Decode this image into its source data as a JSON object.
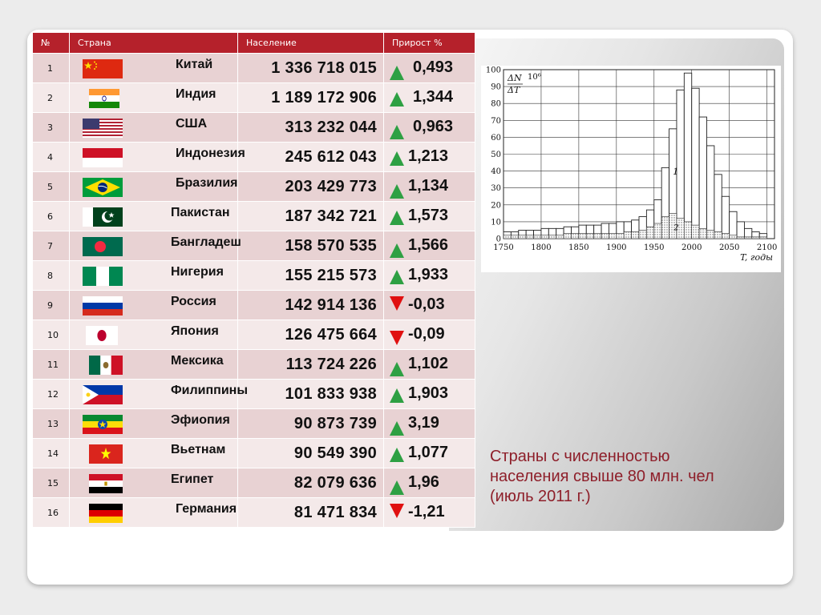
{
  "table": {
    "headers": {
      "num": "№",
      "country": "Страна",
      "population": "Население",
      "growth": "Прирост  %"
    },
    "rows": [
      {
        "num": "1",
        "country": "Китай",
        "flag": "china-flag-icon",
        "population": "1 336 718 015",
        "growth": "0,493",
        "trend": "up"
      },
      {
        "num": "2",
        "country": "Индия",
        "flag": "india-flag-icon",
        "population": "1 189 172 906",
        "growth": "1,344",
        "trend": "up"
      },
      {
        "num": "3",
        "country": "США",
        "flag": "usa-flag-icon",
        "population": "313 232 044",
        "growth": "0,963",
        "trend": "up"
      },
      {
        "num": "4",
        "country": "Индонезия",
        "flag": "indonesia-flag-icon",
        "population": "245 612 043",
        "growth": "1,213",
        "trend": "up"
      },
      {
        "num": "5",
        "country": "Бразилия",
        "flag": "brazil-flag-icon",
        "population": "203 429 773",
        "growth": "1,134",
        "trend": "up"
      },
      {
        "num": "6",
        "country": "Пакистан",
        "flag": "pakistan-flag-icon",
        "population": "187 342 721",
        "growth": "1,573",
        "trend": "up"
      },
      {
        "num": "7",
        "country": "Бангладеш",
        "flag": "bangladesh-flag-icon",
        "population": "158 570 535",
        "growth": "1,566",
        "trend": "up"
      },
      {
        "num": "8",
        "country": "Нигерия",
        "flag": "nigeria-flag-icon",
        "population": "155 215 573",
        "growth": "1,933",
        "trend": "up"
      },
      {
        "num": "9",
        "country": "Россия",
        "flag": "russia-flag-icon",
        "population": "142 914 136",
        "growth": "-0,03",
        "trend": "down"
      },
      {
        "num": "10",
        "country": "Япония",
        "flag": "japan-flag-icon",
        "population": "126 475 664",
        "growth": "-0,09",
        "trend": "down"
      },
      {
        "num": "11",
        "country": "Мексика",
        "flag": "mexico-flag-icon",
        "population": "113 724 226",
        "growth": "1,102",
        "trend": "up"
      },
      {
        "num": "12",
        "country": "Филиппины",
        "flag": "philippines-flag-icon",
        "population": "101 833 938",
        "growth": "1,903",
        "trend": "up"
      },
      {
        "num": "13",
        "country": "Эфиопия",
        "flag": "ethiopia-flag-icon",
        "population": "90 873 739",
        "growth": "3,19",
        "trend": "up"
      },
      {
        "num": "14",
        "country": "Вьетнам",
        "flag": "vietnam-flag-icon",
        "population": "90 549 390",
        "growth": "1,077",
        "trend": "up"
      },
      {
        "num": "15",
        "country": "Египет",
        "flag": "egypt-flag-icon",
        "population": "82 079 636",
        "growth": "1,96",
        "trend": "up"
      },
      {
        "num": "16",
        "country": "Германия",
        "flag": "germany-flag-icon",
        "population": "81 471 834",
        "growth": "-1,21",
        "trend": "down"
      }
    ]
  },
  "chart_data": {
    "type": "bar",
    "x_ticks": [
      "1750",
      "1800",
      "1850",
      "1900",
      "1950",
      "2000",
      "2050",
      "2100"
    ],
    "y_ticks": [
      "0",
      "10",
      "20",
      "30",
      "40",
      "50",
      "60",
      "70",
      "80",
      "90",
      "100"
    ],
    "xlabel": "T, годы",
    "ylabel_top": "ΔN",
    "ylabel_bottom": "ΔT",
    "ylabel_exp": "10⁶",
    "ylim": [
      0,
      100
    ],
    "xlim": [
      1750,
      2110
    ],
    "grid": true,
    "bin_width": 10,
    "bin_starts": [
      1750,
      1760,
      1770,
      1780,
      1790,
      1800,
      1810,
      1820,
      1830,
      1840,
      1850,
      1860,
      1870,
      1880,
      1890,
      1900,
      1910,
      1920,
      1930,
      1940,
      1950,
      1960,
      1970,
      1980,
      1990,
      2000,
      2010,
      2020,
      2030,
      2040,
      2050,
      2060,
      2070,
      2080,
      2090
    ],
    "series": [
      {
        "name": "1",
        "values": [
          4,
          4,
          5,
          5,
          5,
          6,
          6,
          6,
          7,
          7,
          8,
          8,
          8,
          9,
          9,
          10,
          10,
          11,
          13,
          17,
          23,
          42,
          65,
          88,
          98,
          89,
          72,
          55,
          38,
          25,
          16,
          10,
          6,
          4,
          3
        ]
      },
      {
        "name": "2",
        "values": [
          2,
          2,
          2,
          2,
          2,
          2,
          2,
          2,
          3,
          3,
          3,
          3,
          3,
          3,
          3,
          3,
          4,
          4,
          5,
          7,
          9,
          13,
          15,
          12,
          10,
          8,
          6,
          5,
          4,
          3,
          2,
          1,
          1,
          1,
          1
        ]
      }
    ],
    "series_labels": [
      "1",
      "2"
    ]
  },
  "caption": {
    "line1": "Страны с численностью",
    "line2": "населения свыше 80 млн. чел",
    "line3": "(июль 2011 г.)"
  },
  "colors": {
    "header": "#b5212b",
    "row_odd": "#e8d2d3",
    "row_even": "#f4e9e9",
    "up": "#2ea043",
    "down": "#e01010",
    "caption": "#8e1f2a"
  }
}
